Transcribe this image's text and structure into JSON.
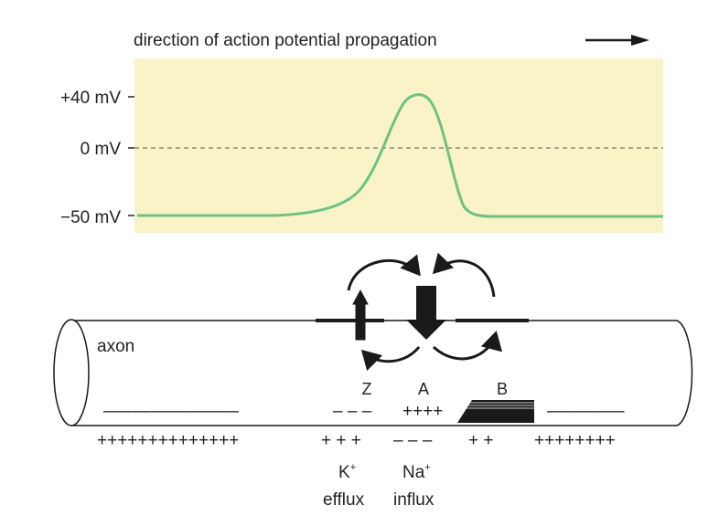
{
  "title": "direction of action potential propagation",
  "graph": {
    "y_labels": {
      "plus40": "+40 mV",
      "zero": "0 mV",
      "minus50": "−50 mV"
    }
  },
  "axon": {
    "label": "axon",
    "regions": {
      "z": "Z",
      "a": "A",
      "b": "B"
    },
    "ions": {
      "k_name": "K",
      "k_sup": "+",
      "k_flux": "efflux",
      "na_name": "Na",
      "na_sup": "+",
      "na_flux": "influx"
    },
    "charges": {
      "in_left": "––––––––––––––",
      "in_z": "– – –",
      "in_a": "++++",
      "in_right": "––––––––",
      "out_left": "++++++++++++++",
      "out_z": "+ + +",
      "out_a": "– – –",
      "out_b": "+ +",
      "out_right": "++++++++"
    }
  },
  "colors": {
    "panel_bg": "#fbf3c8",
    "trace": "#6cc381",
    "ink": "#1a1a1a"
  }
}
